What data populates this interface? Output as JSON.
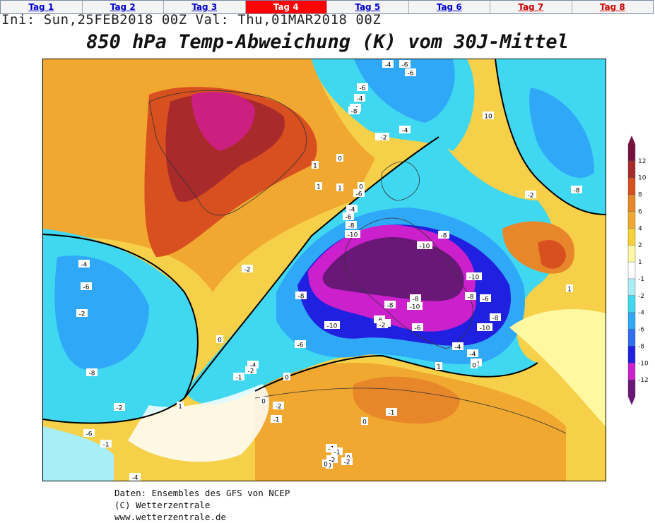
{
  "tabs": [
    {
      "label": "Tag 1",
      "state": "normal"
    },
    {
      "label": "Tag 2",
      "state": "normal"
    },
    {
      "label": "Tag 3",
      "state": "normal"
    },
    {
      "label": "Tag 4",
      "state": "active"
    },
    {
      "label": "Tag 5",
      "state": "normal"
    },
    {
      "label": "Tag 6",
      "state": "normal"
    },
    {
      "label": "Tag 7",
      "state": "future"
    },
    {
      "label": "Tag 8",
      "state": "future"
    }
  ],
  "header": {
    "init_line": "Ini: Sun,25FEB2018 00Z Val: Thu,01MAR2018 00Z",
    "title": "850 hPa Temp-Abweichung (K) vom 30J-Mittel"
  },
  "legend": {
    "levels": [
      "12",
      "10",
      "8",
      "6",
      "4",
      "2",
      "1",
      "-1",
      "-2",
      "-4",
      "-6",
      "-8",
      "-10",
      "-12"
    ],
    "colors": [
      "#7a1040",
      "#a82a2a",
      "#d85020",
      "#e8862a",
      "#f0a830",
      "#f8d038",
      "#fff8a0",
      "#ffffff",
      "#a8eef8",
      "#40d8f0",
      "#30a8f8",
      "#3070f0",
      "#2020e0",
      "#cc20cc",
      "#6a1878"
    ]
  },
  "map_labels": [
    "-4",
    "-6",
    "-6",
    "-6",
    "-4",
    "-6",
    "-8",
    "-2",
    "-4",
    "-2",
    "-6",
    "-4",
    "-6",
    "-8",
    "-10",
    "-8",
    "-10",
    "-2",
    "-8",
    "-10",
    "-6",
    "-2",
    "-8",
    "-10",
    "-8",
    "-6",
    "-10",
    "-8",
    "-6",
    "-8",
    "-10",
    "-4",
    "-4",
    "-2",
    "-2",
    "-6",
    "-4",
    "-2",
    "-1",
    "-2",
    "-1",
    "-1",
    "-2",
    "-6",
    "-8",
    "-6",
    "-4",
    "-2",
    "-8",
    "1",
    "1",
    "0",
    "0",
    "0",
    "1",
    "0",
    "1",
    "0",
    "-1",
    "-2",
    "0",
    "0",
    "-2",
    "-1",
    "-1",
    "-2",
    "0",
    "0",
    "1",
    "0",
    "1",
    "-4",
    "10",
    "-2"
  ],
  "footer": {
    "line1": "Daten: Ensembles des GFS von NCEP",
    "line2": "(C) Wetterzentrale",
    "line3": "www.wetterzentrale.de"
  }
}
